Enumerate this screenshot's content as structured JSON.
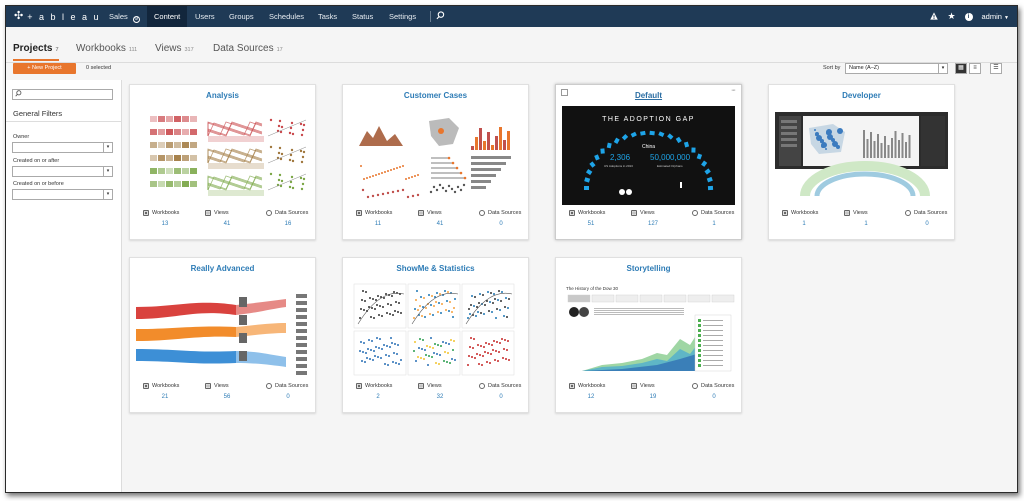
{
  "nav": {
    "site": "Sales",
    "site_icon": "gear-circle-icon",
    "logo_text": "+ a b l e a u",
    "items": [
      "Content",
      "Users",
      "Groups",
      "Schedules",
      "Tasks",
      "Status",
      "Settings"
    ],
    "active": "Content",
    "search_icon": "search-icon",
    "right": {
      "alert_icon": "alert-icon",
      "star_icon": "star-icon",
      "info_icon": "info-icon",
      "user": "admin"
    }
  },
  "tabs": [
    {
      "label": "Projects",
      "count": "7",
      "active": true
    },
    {
      "label": "Workbooks",
      "count": "111"
    },
    {
      "label": "Views",
      "count": "317"
    },
    {
      "label": "Data Sources",
      "count": "17"
    }
  ],
  "actions": {
    "new_project": "+ New Project",
    "selected": "0 selected",
    "sort_label": "Sort by",
    "sort_value": "Name (A–Z)"
  },
  "sidebar": {
    "search_placeholder": "",
    "heading": "General Filters",
    "filters": [
      "Owner",
      "Created on or after",
      "Created on or before"
    ]
  },
  "stat_labels": {
    "workbooks": "Workbooks",
    "views": "Views",
    "datasources": "Data Sources"
  },
  "projects": [
    {
      "name": "Analysis",
      "workbooks": "13",
      "views": "41",
      "datasources": "16"
    },
    {
      "name": "Customer Cases",
      "workbooks": "11",
      "views": "41",
      "datasources": "0"
    },
    {
      "name": "Default",
      "workbooks": "51",
      "views": "127",
      "datasources": "1"
    },
    {
      "name": "Developer",
      "workbooks": "1",
      "views": "1",
      "datasources": "0"
    },
    {
      "name": "Really Advanced",
      "workbooks": "21",
      "views": "56",
      "datasources": "0"
    },
    {
      "name": "ShowMe & Statistics",
      "workbooks": "2",
      "views": "32",
      "datasources": "0"
    },
    {
      "name": "Storytelling",
      "workbooks": "12",
      "views": "19",
      "datasources": "0"
    }
  ],
  "thumb_text": {
    "adoption_title": "THE ADOPTION GAP",
    "country": "China",
    "stat1": "2,306",
    "stat1_sub": "US Adoptions in 2013",
    "stat2": "50,000,000",
    "stat2_sub": "Estimated Orphans",
    "dow_title": "The History of the Dow 30"
  },
  "colors": {
    "nav_bg": "#1f3a56",
    "accent": "#e8762d",
    "link": "#2e7cb6"
  }
}
